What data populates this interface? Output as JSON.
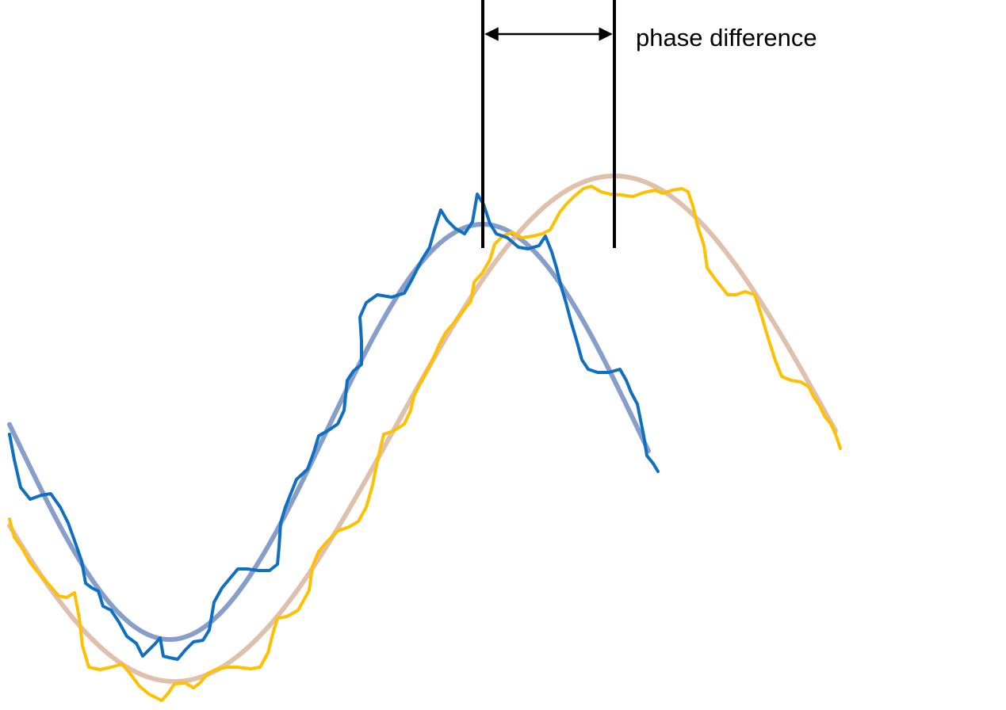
{
  "annotation": {
    "label": "phase difference"
  },
  "colors": {
    "wave_a_smooth": "#7b93c4",
    "wave_a_noisy": "#0f6fc0",
    "wave_b_smooth": "#dcb9a4",
    "wave_b_noisy": "#ffc000",
    "markers": "#000000",
    "background": "#ffffff"
  }
}
